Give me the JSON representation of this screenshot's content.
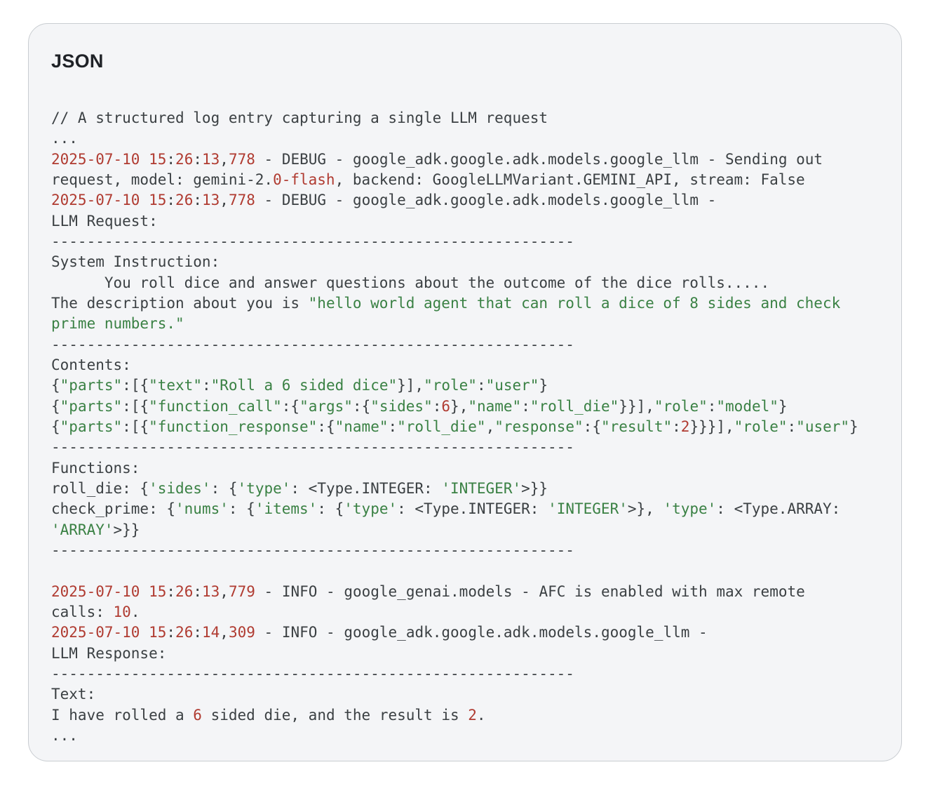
{
  "card": {
    "title": "JSON"
  },
  "colors": {
    "card_background": "#f4f5f7",
    "card_border": "#c9cdd1",
    "title_color": "#1f2227",
    "code_default": "#3b4043",
    "code_number_red": "#b03b31",
    "code_string_green": "#3a8144"
  },
  "code": {
    "lines": [
      {
        "segments": [
          {
            "t": "// A structured log entry capturing a single LLM request",
            "c": "d"
          }
        ]
      },
      {
        "segments": [
          {
            "t": "...",
            "c": "d"
          }
        ]
      },
      {
        "segments": [
          {
            "t": "2025-07-10",
            "c": "r"
          },
          {
            "t": " ",
            "c": "d"
          },
          {
            "t": "15",
            "c": "r"
          },
          {
            "t": ":",
            "c": "d"
          },
          {
            "t": "26",
            "c": "r"
          },
          {
            "t": ":",
            "c": "d"
          },
          {
            "t": "13",
            "c": "r"
          },
          {
            "t": ",",
            "c": "d"
          },
          {
            "t": "778",
            "c": "r"
          },
          {
            "t": " - DEBUG - google_adk.google.adk.models.google_llm - Sending out",
            "c": "d"
          }
        ]
      },
      {
        "segments": [
          {
            "t": "request, model: gemini-2.",
            "c": "d"
          },
          {
            "t": "0-flash",
            "c": "r"
          },
          {
            "t": ", backend: GoogleLLMVariant.GEMINI_API, stream: False",
            "c": "d"
          }
        ]
      },
      {
        "segments": [
          {
            "t": "2025-07-10",
            "c": "r"
          },
          {
            "t": " ",
            "c": "d"
          },
          {
            "t": "15",
            "c": "r"
          },
          {
            "t": ":",
            "c": "d"
          },
          {
            "t": "26",
            "c": "r"
          },
          {
            "t": ":",
            "c": "d"
          },
          {
            "t": "13",
            "c": "r"
          },
          {
            "t": ",",
            "c": "d"
          },
          {
            "t": "778",
            "c": "r"
          },
          {
            "t": " - DEBUG - google_adk.google.adk.models.google_llm -",
            "c": "d"
          }
        ]
      },
      {
        "segments": [
          {
            "t": "LLM Request:",
            "c": "d"
          }
        ]
      },
      {
        "segments": [
          {
            "t": "-----------------------------------------------------------",
            "c": "d"
          }
        ]
      },
      {
        "segments": [
          {
            "t": "System Instruction:",
            "c": "d"
          }
        ]
      },
      {
        "segments": [
          {
            "t": "      You roll dice and answer questions about the outcome of the dice rolls.....",
            "c": "d"
          }
        ]
      },
      {
        "segments": [
          {
            "t": "The description about you is ",
            "c": "d"
          },
          {
            "t": "\"hello world agent that can roll a dice of 8 sides and check",
            "c": "g"
          }
        ]
      },
      {
        "segments": [
          {
            "t": "prime numbers.\"",
            "c": "g"
          }
        ]
      },
      {
        "segments": [
          {
            "t": "-----------------------------------------------------------",
            "c": "d"
          }
        ]
      },
      {
        "segments": [
          {
            "t": "Contents:",
            "c": "d"
          }
        ]
      },
      {
        "segments": [
          {
            "t": "{",
            "c": "d"
          },
          {
            "t": "\"parts\"",
            "c": "g"
          },
          {
            "t": ":[{",
            "c": "d"
          },
          {
            "t": "\"text\"",
            "c": "g"
          },
          {
            "t": ":",
            "c": "d"
          },
          {
            "t": "\"Roll a 6 sided dice\"",
            "c": "g"
          },
          {
            "t": "}],",
            "c": "d"
          },
          {
            "t": "\"role\"",
            "c": "g"
          },
          {
            "t": ":",
            "c": "d"
          },
          {
            "t": "\"user\"",
            "c": "g"
          },
          {
            "t": "}",
            "c": "d"
          }
        ]
      },
      {
        "segments": [
          {
            "t": "{",
            "c": "d"
          },
          {
            "t": "\"parts\"",
            "c": "g"
          },
          {
            "t": ":[{",
            "c": "d"
          },
          {
            "t": "\"function_call\"",
            "c": "g"
          },
          {
            "t": ":{",
            "c": "d"
          },
          {
            "t": "\"args\"",
            "c": "g"
          },
          {
            "t": ":{",
            "c": "d"
          },
          {
            "t": "\"sides\"",
            "c": "g"
          },
          {
            "t": ":",
            "c": "d"
          },
          {
            "t": "6",
            "c": "r"
          },
          {
            "t": "},",
            "c": "d"
          },
          {
            "t": "\"name\"",
            "c": "g"
          },
          {
            "t": ":",
            "c": "d"
          },
          {
            "t": "\"roll_die\"",
            "c": "g"
          },
          {
            "t": "}}],",
            "c": "d"
          },
          {
            "t": "\"role\"",
            "c": "g"
          },
          {
            "t": ":",
            "c": "d"
          },
          {
            "t": "\"model\"",
            "c": "g"
          },
          {
            "t": "}",
            "c": "d"
          }
        ]
      },
      {
        "segments": [
          {
            "t": "{",
            "c": "d"
          },
          {
            "t": "\"parts\"",
            "c": "g"
          },
          {
            "t": ":[{",
            "c": "d"
          },
          {
            "t": "\"function_response\"",
            "c": "g"
          },
          {
            "t": ":{",
            "c": "d"
          },
          {
            "t": "\"name\"",
            "c": "g"
          },
          {
            "t": ":",
            "c": "d"
          },
          {
            "t": "\"roll_die\"",
            "c": "g"
          },
          {
            "t": ",",
            "c": "d"
          },
          {
            "t": "\"response\"",
            "c": "g"
          },
          {
            "t": ":{",
            "c": "d"
          },
          {
            "t": "\"result\"",
            "c": "g"
          },
          {
            "t": ":",
            "c": "d"
          },
          {
            "t": "2",
            "c": "r"
          },
          {
            "t": "}}}],",
            "c": "d"
          },
          {
            "t": "\"role\"",
            "c": "g"
          },
          {
            "t": ":",
            "c": "d"
          },
          {
            "t": "\"user\"",
            "c": "g"
          },
          {
            "t": "}",
            "c": "d"
          }
        ]
      },
      {
        "segments": [
          {
            "t": "-----------------------------------------------------------",
            "c": "d"
          }
        ]
      },
      {
        "segments": [
          {
            "t": "Functions:",
            "c": "d"
          }
        ]
      },
      {
        "segments": [
          {
            "t": "roll_die: {",
            "c": "d"
          },
          {
            "t": "'sides'",
            "c": "g"
          },
          {
            "t": ": {",
            "c": "d"
          },
          {
            "t": "'type'",
            "c": "g"
          },
          {
            "t": ": <Type.INTEGER: ",
            "c": "d"
          },
          {
            "t": "'INTEGER'",
            "c": "g"
          },
          {
            "t": ">}}",
            "c": "d"
          }
        ]
      },
      {
        "segments": [
          {
            "t": "check_prime: {",
            "c": "d"
          },
          {
            "t": "'nums'",
            "c": "g"
          },
          {
            "t": ": {",
            "c": "d"
          },
          {
            "t": "'items'",
            "c": "g"
          },
          {
            "t": ": {",
            "c": "d"
          },
          {
            "t": "'type'",
            "c": "g"
          },
          {
            "t": ": <Type.INTEGER: ",
            "c": "d"
          },
          {
            "t": "'INTEGER'",
            "c": "g"
          },
          {
            "t": ">}, ",
            "c": "d"
          },
          {
            "t": "'type'",
            "c": "g"
          },
          {
            "t": ": <Type.ARRAY:",
            "c": "d"
          }
        ]
      },
      {
        "segments": [
          {
            "t": "'ARRAY'",
            "c": "g"
          },
          {
            "t": ">}}",
            "c": "d"
          }
        ]
      },
      {
        "segments": [
          {
            "t": "-----------------------------------------------------------",
            "c": "d"
          }
        ]
      },
      {
        "segments": []
      },
      {
        "segments": [
          {
            "t": "2025-07-10",
            "c": "r"
          },
          {
            "t": " ",
            "c": "d"
          },
          {
            "t": "15",
            "c": "r"
          },
          {
            "t": ":",
            "c": "d"
          },
          {
            "t": "26",
            "c": "r"
          },
          {
            "t": ":",
            "c": "d"
          },
          {
            "t": "13",
            "c": "r"
          },
          {
            "t": ",",
            "c": "d"
          },
          {
            "t": "779",
            "c": "r"
          },
          {
            "t": " - INFO - google_genai.models - AFC is enabled with max remote",
            "c": "d"
          }
        ]
      },
      {
        "segments": [
          {
            "t": "calls: ",
            "c": "d"
          },
          {
            "t": "10",
            "c": "r"
          },
          {
            "t": ".",
            "c": "d"
          }
        ]
      },
      {
        "segments": [
          {
            "t": "2025-07-10",
            "c": "r"
          },
          {
            "t": " ",
            "c": "d"
          },
          {
            "t": "15",
            "c": "r"
          },
          {
            "t": ":",
            "c": "d"
          },
          {
            "t": "26",
            "c": "r"
          },
          {
            "t": ":",
            "c": "d"
          },
          {
            "t": "14",
            "c": "r"
          },
          {
            "t": ",",
            "c": "d"
          },
          {
            "t": "309",
            "c": "r"
          },
          {
            "t": " - INFO - google_adk.google.adk.models.google_llm -",
            "c": "d"
          }
        ]
      },
      {
        "segments": [
          {
            "t": "LLM Response:",
            "c": "d"
          }
        ]
      },
      {
        "segments": [
          {
            "t": "-----------------------------------------------------------",
            "c": "d"
          }
        ]
      },
      {
        "segments": [
          {
            "t": "Text:",
            "c": "d"
          }
        ]
      },
      {
        "segments": [
          {
            "t": "I have rolled a ",
            "c": "d"
          },
          {
            "t": "6",
            "c": "r"
          },
          {
            "t": " sided die, and the result is ",
            "c": "d"
          },
          {
            "t": "2",
            "c": "r"
          },
          {
            "t": ".",
            "c": "d"
          }
        ]
      },
      {
        "segments": [
          {
            "t": "...",
            "c": "d"
          }
        ]
      }
    ]
  }
}
